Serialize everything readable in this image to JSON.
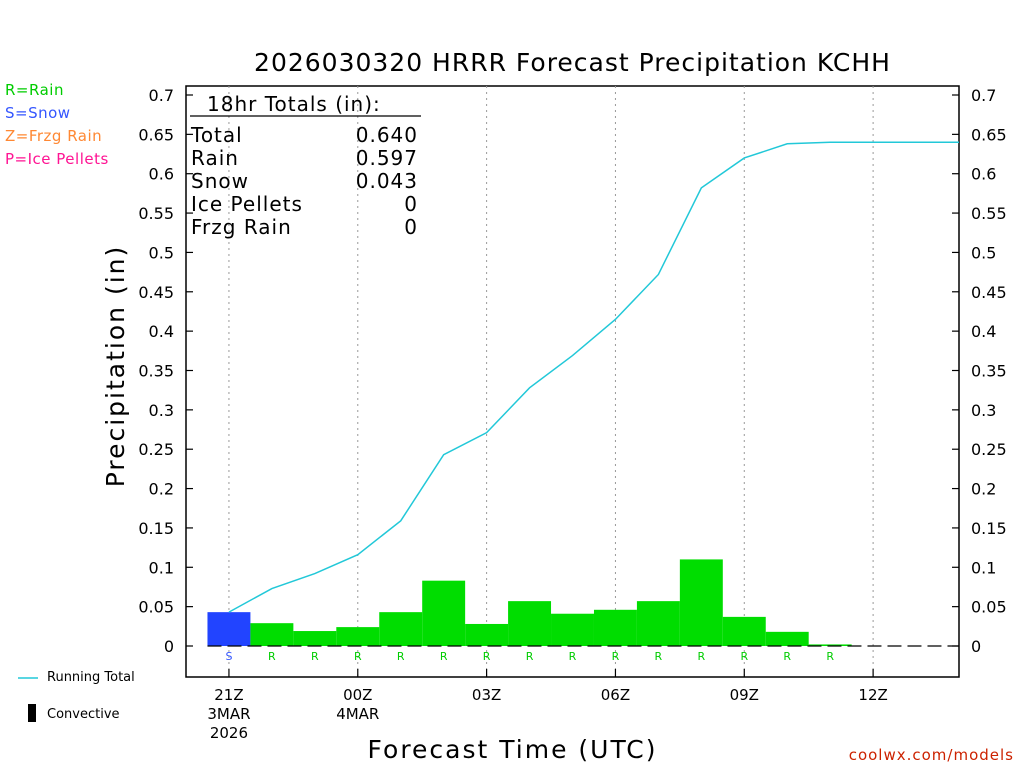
{
  "chart_data": {
    "type": "bar",
    "title": "2026030320 HRRR Forecast Precipitation KCHH",
    "xlabel": "Forecast Time (UTC)",
    "ylabel": "Precipitation (in)",
    "ylim": [
      0,
      0.7
    ],
    "y_ticks": [
      "0",
      "0.05",
      "0.1",
      "0.15",
      "0.2",
      "0.25",
      "0.3",
      "0.35",
      "0.4",
      "0.45",
      "0.5",
      "0.55",
      "0.6",
      "0.65",
      "0.7"
    ],
    "x_ticks": [
      {
        "hour": 0,
        "label": "21Z",
        "date1": "3MAR",
        "date2": "2026"
      },
      {
        "hour": 3,
        "label": "00Z",
        "date1": "4MAR",
        "date2": ""
      },
      {
        "hour": 6,
        "label": "03Z",
        "date1": "",
        "date2": ""
      },
      {
        "hour": 9,
        "label": "06Z",
        "date1": "",
        "date2": ""
      },
      {
        "hour": 12,
        "label": "09Z",
        "date1": "",
        "date2": ""
      },
      {
        "hour": 15,
        "label": "12Z",
        "date1": "",
        "date2": ""
      }
    ],
    "x_range_hours": [
      -1,
      17
    ],
    "hours": [
      0,
      1,
      2,
      3,
      4,
      5,
      6,
      7,
      8,
      9,
      10,
      11,
      12,
      13,
      14,
      15,
      16,
      17
    ],
    "hourly_precip": [
      0.043,
      0.029,
      0.019,
      0.024,
      0.043,
      0.083,
      0.028,
      0.057,
      0.041,
      0.046,
      0.057,
      0.11,
      0.037,
      0.018,
      0.002,
      0.0,
      0.0,
      0.0
    ],
    "precip_type": [
      "S",
      "R",
      "R",
      "R",
      "R",
      "R",
      "R",
      "R",
      "R",
      "R",
      "R",
      "R",
      "R",
      "R",
      "R",
      "",
      "",
      ""
    ],
    "running_total": [
      0.043,
      0.073,
      0.092,
      0.116,
      0.159,
      0.243,
      0.271,
      0.328,
      0.369,
      0.415,
      0.472,
      0.582,
      0.62,
      0.638,
      0.64,
      0.64,
      0.64,
      0.64
    ],
    "series": [
      {
        "name": "Rain",
        "color": "#00dd00"
      },
      {
        "name": "Snow",
        "color": "#2244ff"
      },
      {
        "name": "Running Total",
        "color": "#22c8d8"
      },
      {
        "name": "Convective",
        "color": "#000000"
      }
    ]
  },
  "legend": {
    "rain": "R=Rain",
    "snow": "S=Snow",
    "frzg": "Z=Frzg Rain",
    "ice": "P=Ice Pellets",
    "running_total": "Running Total",
    "convective": "Convective"
  },
  "totals_box": {
    "header": "18hr Totals (in):",
    "rows": [
      {
        "label": "Total",
        "value": "0.640"
      },
      {
        "label": "Rain",
        "value": "0.597"
      },
      {
        "label": "Snow",
        "value": "0.043"
      },
      {
        "label": "Ice Pellets",
        "value": "0"
      },
      {
        "label": "Frzg Rain",
        "value": "0"
      }
    ]
  },
  "credit": "coolwx.com/models",
  "colors": {
    "rain": "#00dd00",
    "snow": "#2244ff",
    "running_total": "#22c8d8",
    "rain_text": "#00cc00",
    "snow_text": "#3355ff",
    "frzg_text": "#ff8833",
    "ice_text": "#ff1493",
    "credit": "#cc2200"
  }
}
